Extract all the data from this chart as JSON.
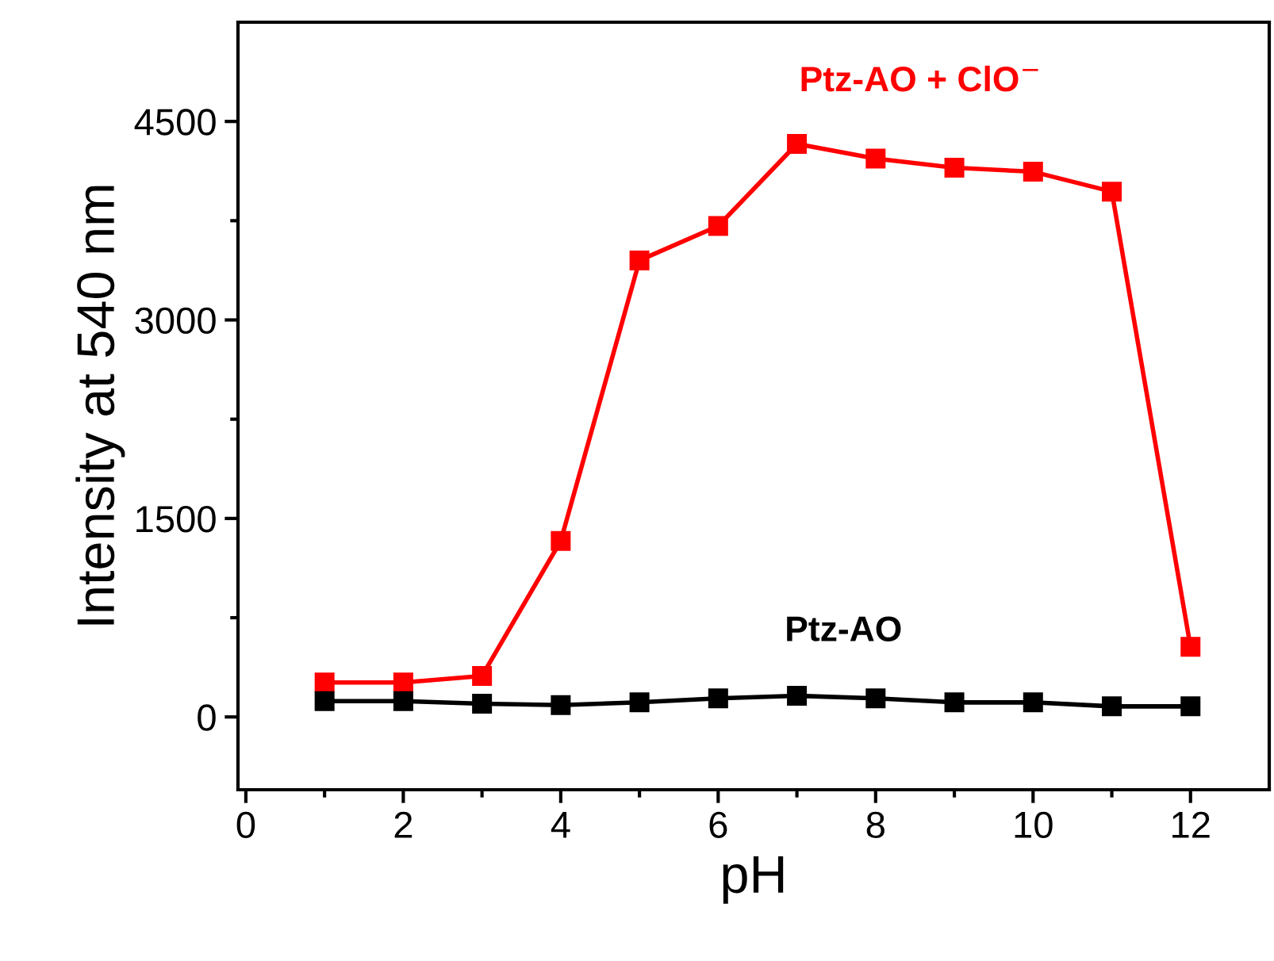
{
  "chart_data": {
    "type": "line",
    "xlabel": "pH",
    "ylabel": "Intensity at 540 nm",
    "x": [
      1,
      2,
      3,
      4,
      5,
      6,
      7,
      8,
      9,
      10,
      11,
      12
    ],
    "series": [
      {
        "name": "Ptz-AO + ClO$^{−}$",
        "color": "#ff0000",
        "values": [
          260,
          260,
          310,
          1330,
          3450,
          3710,
          4330,
          4220,
          4150,
          4120,
          3970,
          530
        ]
      },
      {
        "name": "Ptz-AO",
        "color": "#000000",
        "values": [
          120,
          120,
          100,
          90,
          110,
          140,
          160,
          140,
          110,
          110,
          80,
          80
        ]
      }
    ],
    "xlim": [
      -0.1,
      13
    ],
    "ylim": [
      -550,
      5250
    ],
    "xticks": [
      0,
      {
        "value": 1,
        "label": null
      },
      2,
      {
        "value": 3,
        "label": null
      },
      4,
      {
        "value": 5,
        "label": null
      },
      6,
      {
        "value": 7,
        "label": null
      },
      8,
      {
        "value": 9,
        "label": null
      },
      10,
      {
        "value": 11,
        "label": null
      },
      12
    ],
    "yticks": [
      0,
      {
        "value": 750,
        "label": null
      },
      1500,
      {
        "value": 2250,
        "label": null
      },
      3000,
      {
        "value": 3750,
        "label": null
      },
      4500
    ],
    "marker": "square",
    "line_style": "solid",
    "grid": false,
    "legend": false
  }
}
